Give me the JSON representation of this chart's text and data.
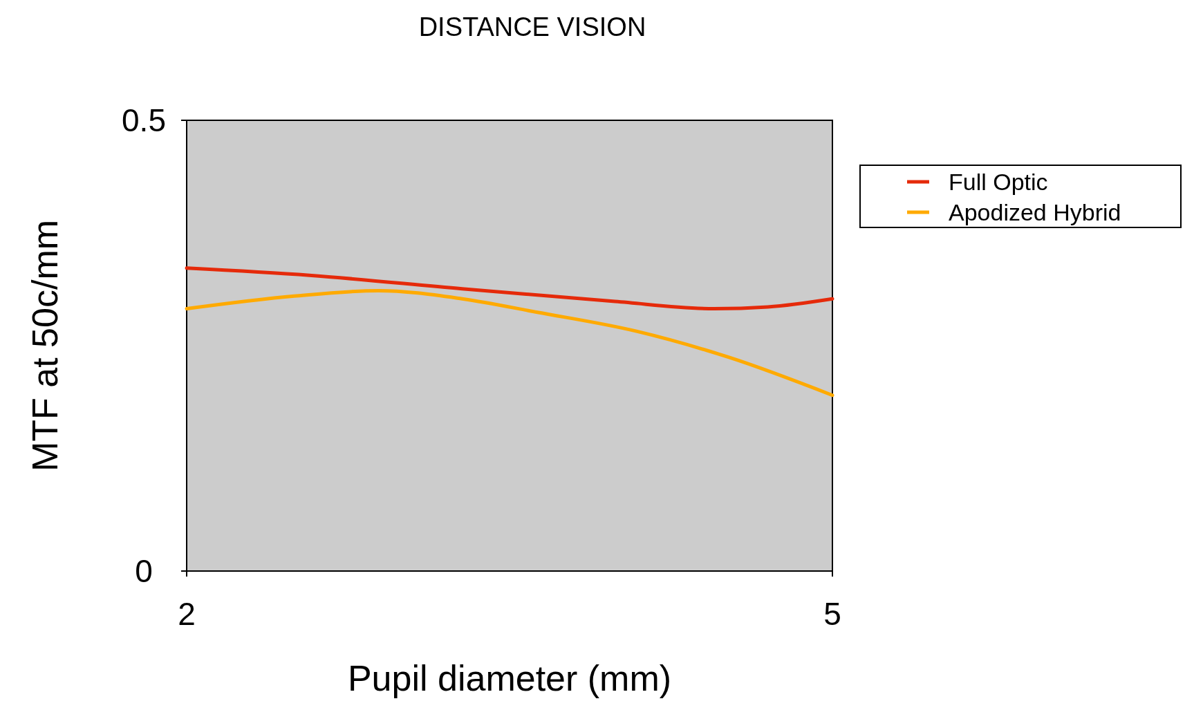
{
  "chart_data": {
    "type": "line",
    "title": "DISTANCE VISION",
    "xlabel": "Pupil diameter (mm)",
    "ylabel": "MTF at 50c/mm",
    "xlim": [
      2,
      5
    ],
    "xticks": [
      2,
      5
    ],
    "ylim": [
      0,
      0.5
    ],
    "yticks": [
      0,
      0.5
    ],
    "grid": false,
    "legend": "top right",
    "line_style": "solid",
    "series": [
      {
        "name": "Full Optic",
        "color": "#e52a0a",
        "x": [
          2,
          2.57,
          3.28,
          3.99,
          4.45,
          4.7,
          5
        ],
        "values": [
          0.336,
          0.328,
          0.313,
          0.299,
          0.291,
          0.293,
          0.302
        ]
      },
      {
        "name": "Apodized Hybrid",
        "color": "#ffaa00",
        "x": [
          2,
          2.5,
          2.89,
          3.28,
          3.63,
          4.09,
          4.52,
          5
        ],
        "values": [
          0.291,
          0.305,
          0.311,
          0.302,
          0.287,
          0.266,
          0.237,
          0.195
        ]
      }
    ]
  }
}
